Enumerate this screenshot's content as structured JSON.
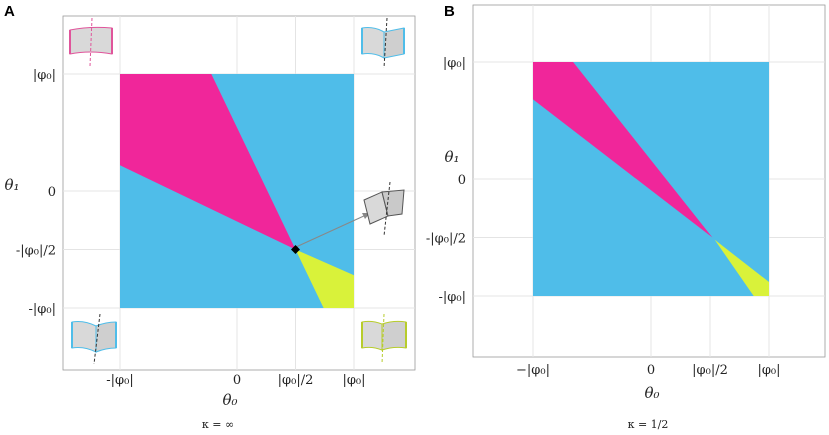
{
  "chart_data": [
    {
      "panel": "A",
      "type": "heatmap",
      "xlabel": "θ₀",
      "ylabel": "θ₁",
      "xlim": [
        -1,
        1
      ],
      "ylim": [
        -1,
        1
      ],
      "x_ticks": [
        {
          "value": -1,
          "label": "-|φ₀|"
        },
        {
          "value": 0,
          "label": "0"
        },
        {
          "value": 0.5,
          "label": "|φ₀|/2"
        },
        {
          "value": 1,
          "label": "|φ₀|"
        }
      ],
      "y_ticks": [
        {
          "value": 1,
          "label": "|φ₀|"
        },
        {
          "value": 0,
          "label": "0"
        },
        {
          "value": -0.5,
          "label": "-|φ₀|/2"
        },
        {
          "value": -1,
          "label": "-|φ₀|"
        }
      ],
      "grid": true,
      "caption": "κ = ∞",
      "regions": [
        {
          "color": "#4fbde9",
          "vertices": [
            [
              -1,
              -1
            ],
            [
              1,
              -1
            ],
            [
              1,
              1
            ],
            [
              -1,
              1
            ]
          ]
        },
        {
          "color": "#f0269a",
          "vertices": [
            [
              -1,
              1
            ],
            [
              -0.22,
              1
            ],
            [
              0.5,
              -0.5
            ],
            [
              -1,
              0.22
            ]
          ]
        },
        {
          "color": "#d9f23a",
          "vertices": [
            [
              0.5,
              -0.5
            ],
            [
              1,
              -0.72
            ],
            [
              1,
              -1
            ],
            [
              0.74,
              -1
            ]
          ]
        }
      ],
      "marked_point": {
        "x": 0.5,
        "y": -0.5
      }
    },
    {
      "panel": "B",
      "type": "heatmap",
      "xlabel": "θ₀",
      "ylabel": "θ₁",
      "xlim": [
        -1,
        1
      ],
      "ylim": [
        -1,
        1
      ],
      "x_ticks": [
        {
          "value": -1,
          "label": "−|φ₀|"
        },
        {
          "value": 0,
          "label": "0"
        },
        {
          "value": 0.5,
          "label": "|φ₀|/2"
        },
        {
          "value": 1,
          "label": "|φ₀|"
        }
      ],
      "y_ticks": [
        {
          "value": 1,
          "label": "|φ₀|"
        },
        {
          "value": 0,
          "label": "0"
        },
        {
          "value": -0.5,
          "label": "-|φ₀|/2"
        },
        {
          "value": -1,
          "label": "-|φ₀|"
        }
      ],
      "grid": true,
      "caption": "κ = 1/2",
      "regions": [
        {
          "color": "#4fbde9",
          "vertices": [
            [
              -1,
              -1
            ],
            [
              1,
              -1
            ],
            [
              1,
              1
            ],
            [
              -1,
              1
            ]
          ]
        },
        {
          "color": "#f0269a",
          "vertices": [
            [
              -1,
              1
            ],
            [
              -0.66,
              1
            ],
            [
              0.52,
              -0.5
            ],
            [
              -1,
              0.68
            ]
          ]
        },
        {
          "color": "#d9f23a",
          "vertices": [
            [
              0.54,
              -0.52
            ],
            [
              1,
              -0.88
            ],
            [
              1,
              -1
            ],
            [
              0.87,
              -1
            ]
          ]
        }
      ]
    }
  ],
  "insets": [
    {
      "name": "inset-top-left",
      "color": "#e0559b"
    },
    {
      "name": "inset-top-right",
      "color": "#4fbde9"
    },
    {
      "name": "inset-bottom-left",
      "color": "#4fbde9"
    },
    {
      "name": "inset-bottom-right",
      "color": "#b7cc2c"
    },
    {
      "name": "inset-middle",
      "color": "#555555"
    }
  ]
}
